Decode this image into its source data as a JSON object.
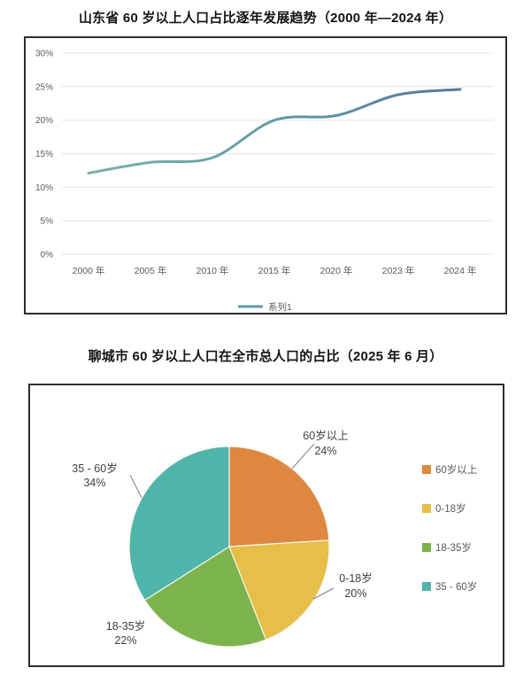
{
  "chart_data": [
    {
      "type": "line",
      "title": "山东省 60 岁以上人口占比逐年发展趋势（2000 年—2024 年）",
      "categories": [
        "2000 年",
        "2005 年",
        "2010 年",
        "2015 年",
        "2020 年",
        "2023 年",
        "2024 年"
      ],
      "series": [
        {
          "name": "系列1",
          "values": [
            12.1,
            13.7,
            14.4,
            20.0,
            20.7,
            23.8,
            24.6
          ]
        }
      ],
      "ylabel": "",
      "xlabel": "",
      "ylim": [
        0,
        30
      ],
      "ytick_step": 5,
      "yticks": [
        "0%",
        "5%",
        "10%",
        "15%",
        "20%",
        "25%",
        "30%"
      ],
      "grid": true,
      "smooth": true,
      "legend_position": "bottom",
      "line_color": {
        "start": "#7cb1aa",
        "mid": "#649aa6",
        "end": "#54789b"
      },
      "legend_marker_color": "#6399a8",
      "grid_color": "#e3e3e3",
      "axis_text_color": "#595959"
    },
    {
      "type": "pie",
      "title": "聊城市 60 岁以上人口在全市总人口的占比（2025 年 6 月）",
      "slices": [
        {
          "label": "60岁以上",
          "value": 24,
          "color": "#de883f"
        },
        {
          "label": "0-18岁",
          "value": 20,
          "color": "#e6be48"
        },
        {
          "label": "18-35岁",
          "value": 22,
          "color": "#7cb34c"
        },
        {
          "label": "35 - 60岁",
          "value": 34,
          "color": "#4fb5aa"
        }
      ],
      "start_angle": 0,
      "direction": "clockwise",
      "label_format": "label_percent",
      "legend_position": "right",
      "label_text_color": "#3f3f3f",
      "legend_text_color": "#595959"
    }
  ]
}
